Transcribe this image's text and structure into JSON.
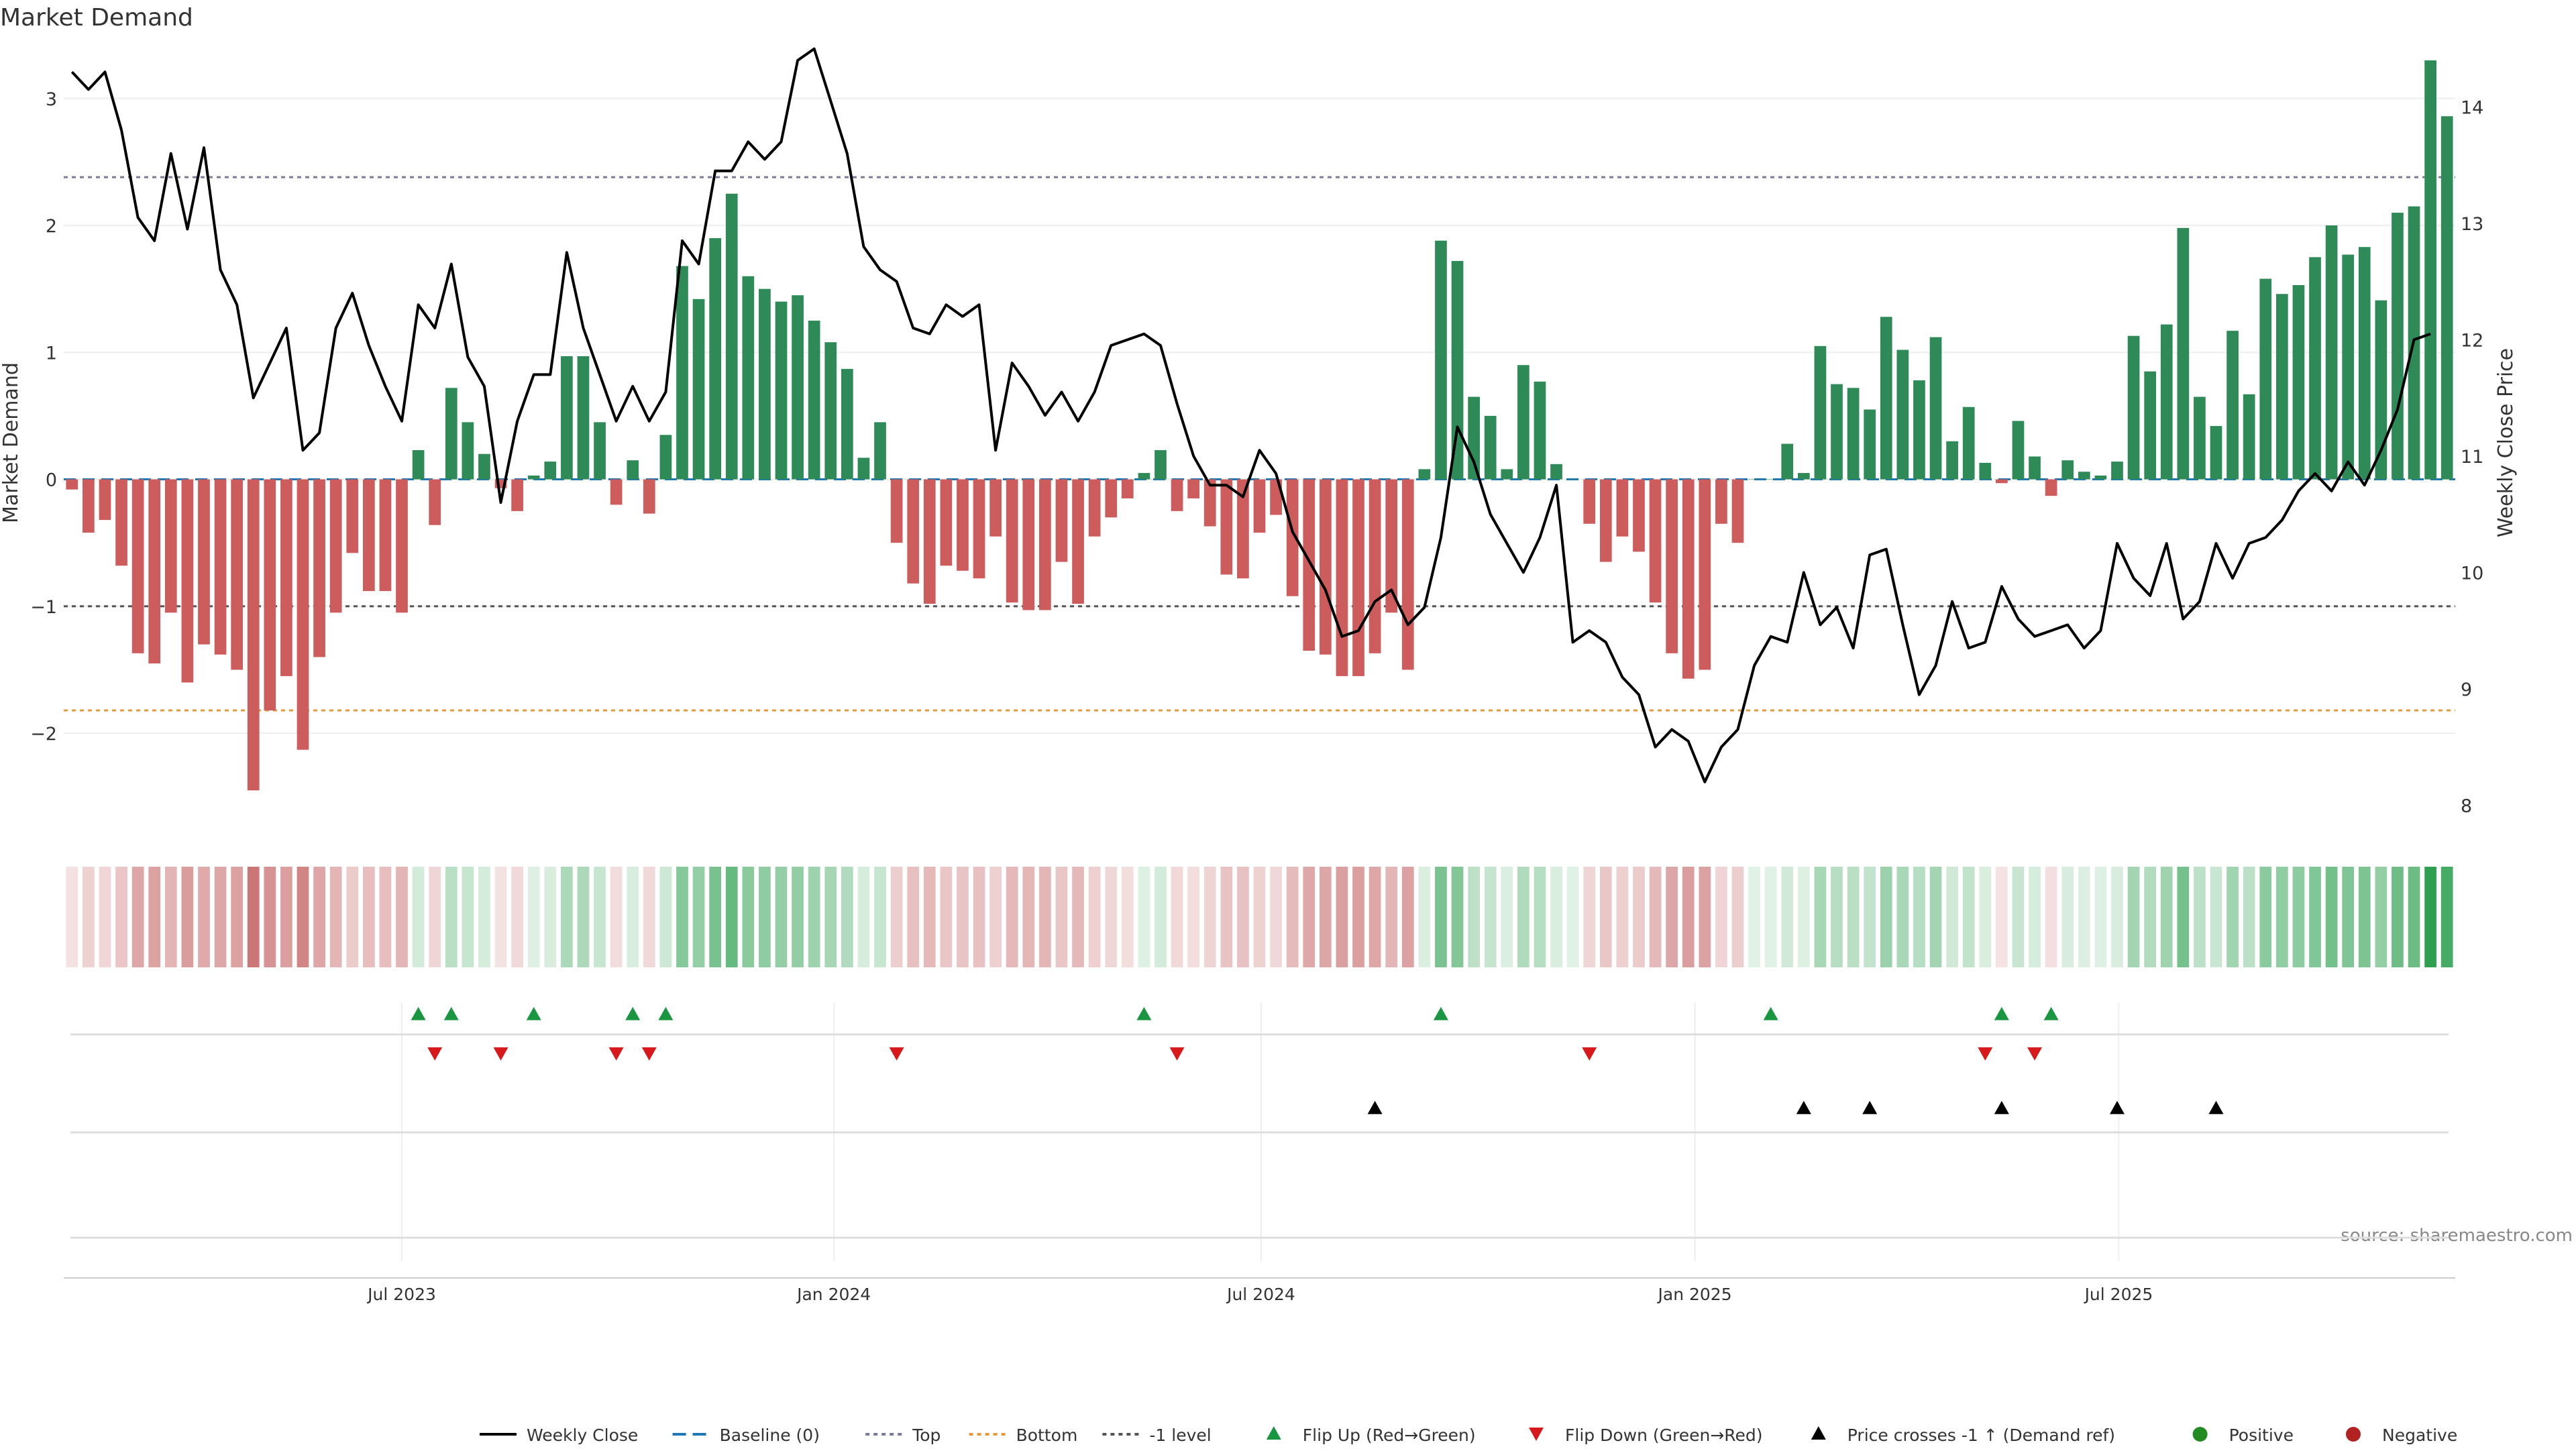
{
  "title": "Market Demand",
  "source_note": "source: sharemaestro.com",
  "colors": {
    "positive": "#2e8b57",
    "negative": "#cd5c5c",
    "price_line": "#000000",
    "baseline": "#1f77b4",
    "top_level": "#7a7a9a",
    "bottom_level": "#e69a3a",
    "minus_one_level": "#555555",
    "flip_up": "#1a9641",
    "flip_down": "#d7191c",
    "cross": "#000000"
  },
  "chart_data": {
    "type": "bar",
    "title": "Market Demand",
    "ylabel": "Market Demand",
    "y2label": "Weekly Close Price",
    "ylim": [
      -2.75,
      3.3
    ],
    "y2lim": [
      7.8,
      14.4
    ],
    "yticks": [
      {
        "v": -2,
        "label": "−2"
      },
      {
        "v": -1,
        "label": "−1"
      },
      {
        "v": 0,
        "label": "0"
      },
      {
        "v": 1,
        "label": "1"
      },
      {
        "v": 2,
        "label": "2"
      },
      {
        "v": 3,
        "label": "3"
      }
    ],
    "y2ticks": [
      {
        "v": 8,
        "label": "8"
      },
      {
        "v": 9,
        "label": "9"
      },
      {
        "v": 10,
        "label": "10"
      },
      {
        "v": 11,
        "label": "11"
      },
      {
        "v": 12,
        "label": "12"
      },
      {
        "v": 13,
        "label": "13"
      },
      {
        "v": 14,
        "label": "14"
      }
    ],
    "xticks": [
      {
        "i": 20.5,
        "label": "Jul 2023"
      },
      {
        "i": 46.7,
        "label": "Jan 2024"
      },
      {
        "i": 72.6,
        "label": "Jul 2024"
      },
      {
        "i": 98.9,
        "label": "Jan 2025"
      },
      {
        "i": 124.6,
        "label": "Jul 2025"
      }
    ],
    "levels": {
      "baseline": 0,
      "top": 2.38,
      "bottom": -1.82,
      "minus_one": -1
    },
    "demand": [
      -0.08,
      -0.42,
      -0.32,
      -0.68,
      -1.37,
      -1.45,
      -1.05,
      -1.6,
      -1.3,
      -1.38,
      -1.5,
      -2.45,
      -1.82,
      -1.55,
      -2.13,
      -1.4,
      -1.05,
      -0.58,
      -0.88,
      -0.88,
      -1.05,
      0.23,
      -0.36,
      0.72,
      0.45,
      0.2,
      -0.07,
      -0.25,
      0.03,
      0.14,
      0.97,
      0.97,
      0.45,
      -0.2,
      0.15,
      -0.27,
      0.35,
      1.68,
      1.42,
      1.9,
      2.25,
      1.6,
      1.5,
      1.4,
      1.45,
      1.25,
      1.08,
      0.87,
      0.17,
      0.45,
      -0.5,
      -0.82,
      -0.98,
      -0.68,
      -0.72,
      -0.78,
      -0.45,
      -0.97,
      -1.03,
      -1.03,
      -0.65,
      -0.98,
      -0.45,
      -0.3,
      -0.15,
      0.05,
      0.23,
      -0.25,
      -0.15,
      -0.37,
      -0.75,
      -0.78,
      -0.42,
      -0.28,
      -0.92,
      -1.35,
      -1.38,
      -1.55,
      -1.55,
      -1.37,
      -1.05,
      -1.5,
      0.08,
      1.88,
      1.72,
      0.65,
      0.5,
      0.08,
      0.9,
      0.77,
      0.12,
      0,
      -0.35,
      -0.65,
      -0.45,
      -0.57,
      -0.97,
      -1.37,
      -1.57,
      -1.5,
      -0.35,
      -0.5,
      0,
      0,
      0.28,
      0.05,
      1.05,
      0.75,
      0.72,
      0.55,
      1.28,
      1.02,
      0.78,
      1.12,
      0.3,
      0.57,
      0.13,
      -0.03,
      0.46,
      0.18,
      -0.13,
      0.15,
      0.06,
      0.03,
      0.14,
      1.13,
      0.85,
      1.22,
      1.98,
      0.65,
      0.42,
      1.17,
      0.67,
      1.58,
      1.46,
      1.53,
      1.75,
      2,
      1.77,
      1.83,
      1.41,
      2.1,
      2.15,
      3.3,
      2.86
    ],
    "price": [
      14.3,
      14.15,
      14.3,
      13.8,
      13.05,
      12.85,
      13.6,
      12.95,
      13.65,
      12.6,
      12.3,
      11.5,
      11.8,
      12.1,
      11.05,
      11.2,
      12.1,
      12.4,
      11.95,
      11.6,
      11.3,
      12.3,
      12.1,
      12.65,
      11.85,
      11.6,
      10.6,
      11.3,
      11.7,
      11.7,
      12.75,
      12.1,
      11.7,
      11.3,
      11.6,
      11.3,
      11.55,
      12.85,
      12.65,
      13.45,
      13.45,
      13.7,
      13.55,
      13.7,
      14.4,
      14.5,
      14.05,
      13.6,
      12.8,
      12.6,
      12.5,
      12.1,
      12.05,
      12.3,
      12.2,
      12.3,
      11.05,
      11.8,
      11.6,
      11.35,
      11.55,
      11.3,
      11.55,
      11.95,
      12,
      12.05,
      11.95,
      11.45,
      11,
      10.75,
      10.75,
      10.65,
      11.05,
      10.85,
      10.35,
      10.1,
      9.85,
      9.45,
      9.5,
      9.75,
      9.85,
      9.55,
      9.7,
      10.3,
      11.25,
      10.95,
      10.5,
      10.25,
      10,
      10.3,
      10.75,
      9.4,
      9.5,
      9.4,
      9.1,
      8.95,
      8.5,
      8.65,
      8.55,
      8.2,
      8.5,
      8.65,
      9.2,
      9.45,
      9.4,
      10,
      9.55,
      9.7,
      9.35,
      10.15,
      10.2,
      9.55,
      8.95,
      9.2,
      9.75,
      9.35,
      9.4,
      9.88,
      9.6,
      9.45,
      9.5,
      9.55,
      9.35,
      9.5,
      10.25,
      9.95,
      9.8,
      10.25,
      9.6,
      9.75,
      10.25,
      9.95,
      10.25,
      10.3,
      10.45,
      10.7,
      10.85,
      10.7,
      10.95,
      10.75,
      11.05,
      11.4,
      12,
      12.05
    ],
    "flip_up": [
      21,
      23,
      28,
      34,
      36,
      65,
      83,
      103,
      117,
      120
    ],
    "flip_down": [
      22,
      26,
      33,
      35,
      50,
      67,
      92,
      116,
      119
    ],
    "price_cross": [
      79,
      105,
      109,
      117,
      124,
      130
    ],
    "legend": [
      {
        "label": "Weekly Close",
        "kind": "line"
      },
      {
        "label": "Baseline (0)",
        "kind": "dash-baseline"
      },
      {
        "label": "Top",
        "kind": "dot-top"
      },
      {
        "label": "Bottom",
        "kind": "dot-bottom"
      },
      {
        "label": "-1 level",
        "kind": "dot-minus"
      },
      {
        "label": "Flip Up (Red→Green)",
        "kind": "tri-up-green"
      },
      {
        "label": "Flip Down (Green→Red)",
        "kind": "tri-down-red"
      },
      {
        "label": "Price crosses -1 ↑ (Demand ref)",
        "kind": "tri-up-black"
      },
      {
        "label": "Positive",
        "kind": "dot-green"
      },
      {
        "label": "Negative",
        "kind": "dot-red"
      }
    ]
  }
}
